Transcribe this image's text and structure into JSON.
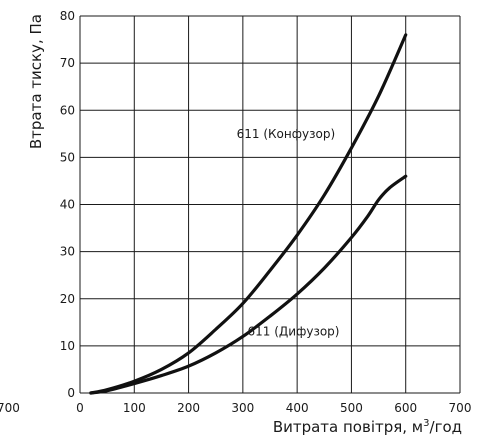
{
  "chart_data": {
    "type": "line",
    "xlabel": "Витрата повітря, м",
    "xlabel_sup": "3",
    "xlabel_tail": "/год",
    "ylabel": "Втрата тиску, Па",
    "xlim": [
      0,
      700
    ],
    "ylim": [
      0,
      80
    ],
    "x_ticks": [
      0,
      100,
      200,
      300,
      400,
      500,
      600,
      700
    ],
    "y_ticks": [
      0,
      10,
      20,
      30,
      40,
      50,
      60,
      70,
      80
    ],
    "left_edge_label": "700",
    "grid": true,
    "series": [
      {
        "name": "611 (Конфузор)",
        "x": [
          20,
          50,
          100,
          150,
          200,
          250,
          300,
          350,
          400,
          450,
          500,
          550,
          600
        ],
        "y": [
          0,
          0.7,
          2.5,
          5,
          8.5,
          13.5,
          19,
          26,
          33.5,
          42,
          52,
          63,
          76
        ]
      },
      {
        "name": "611 (Дифузор)",
        "x": [
          20,
          50,
          100,
          150,
          200,
          250,
          300,
          350,
          400,
          450,
          500,
          530,
          550,
          570,
          600
        ],
        "y": [
          0,
          0.5,
          2,
          3.7,
          5.7,
          8.5,
          12,
          16.3,
          21,
          26.5,
          33,
          37.5,
          41,
          43.5,
          46
        ]
      }
    ],
    "series_label_anchors": [
      {
        "x": 470,
        "y": 55
      },
      {
        "x": 478,
        "y": 13
      }
    ]
  }
}
